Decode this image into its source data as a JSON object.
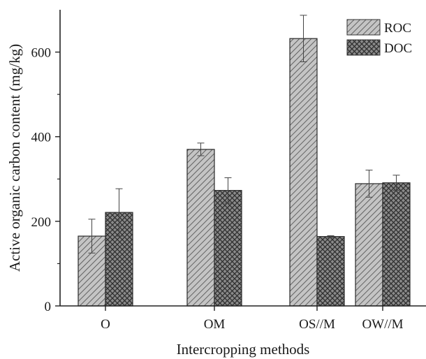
{
  "chart_data": {
    "type": "bar",
    "title": "",
    "xlabel": "Intercropping methods",
    "ylabel": "Active organic carbon content (mg/kg)",
    "categories": [
      "O",
      "OM",
      "OS//M",
      "OW//M"
    ],
    "series": [
      {
        "name": "ROC",
        "values": [
          165,
          370,
          632,
          289
        ],
        "errors": [
          40,
          15,
          55,
          32
        ],
        "pattern": "diagonal-hatch",
        "color": "#b8b8b8"
      },
      {
        "name": "DOC",
        "values": [
          221,
          273,
          164,
          291
        ],
        "errors": [
          56,
          30,
          2,
          18
        ],
        "pattern": "crosshatch",
        "color": "#7a7a7a"
      }
    ],
    "ylim": [
      0,
      700
    ],
    "yticks": [
      0,
      200,
      400,
      600
    ],
    "grid": false,
    "legend_position": "top-right"
  }
}
